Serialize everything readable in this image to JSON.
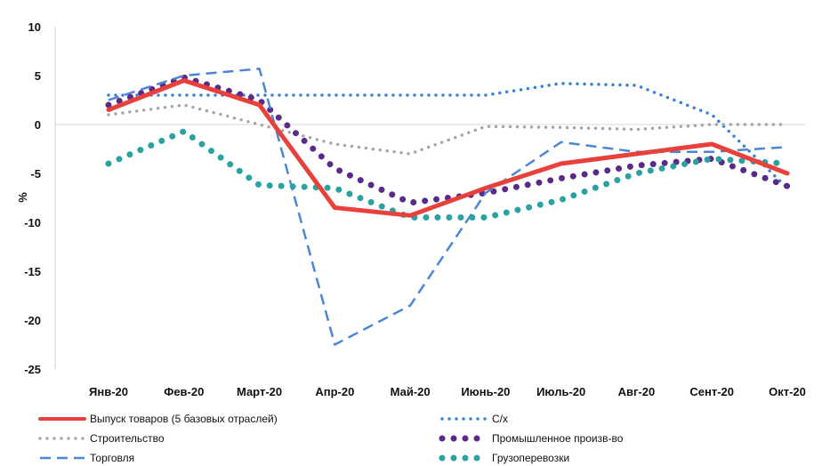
{
  "chart_data": {
    "type": "line",
    "ylabel": "%",
    "ylim": [
      -25,
      10
    ],
    "yticks": [
      10,
      5,
      0,
      -5,
      -10,
      -15,
      -20,
      -25
    ],
    "categories": [
      "Янв-20",
      "Фев-20",
      "Март-20",
      "Апр-20",
      "Май-20",
      "Июнь-20",
      "Июль-20",
      "Авг-20",
      "Сент-20",
      "Окт-20"
    ],
    "legend_position": "bottom",
    "series": [
      {
        "name": "Выпуск товаров (5 базовых отраслей)",
        "style": "solid",
        "color": "#e8413b",
        "values": [
          1.5,
          4.5,
          2.0,
          -8.5,
          -9.3,
          -6.5,
          -4.0,
          -3.0,
          -2.0,
          -5.0
        ]
      },
      {
        "name": "С/х",
        "style": "dotted-small",
        "color": "#3a7fd5",
        "values": [
          3.0,
          3.0,
          3.0,
          3.0,
          3.0,
          3.0,
          4.2,
          4.0,
          1.0,
          -6.5
        ]
      },
      {
        "name": "Строительство",
        "style": "dotted-small",
        "color": "#a6a6a6",
        "values": [
          1.0,
          2.0,
          0.0,
          -2.0,
          -3.0,
          -0.2,
          -0.3,
          -0.5,
          0.0,
          0.0
        ]
      },
      {
        "name": "Промышленное произв-во",
        "style": "dotted-large",
        "color": "#5a2a8a",
        "values": [
          2.0,
          4.8,
          2.5,
          -4.5,
          -8.0,
          -7.0,
          -5.5,
          -4.2,
          -3.5,
          -6.3
        ]
      },
      {
        "name": "Торговля",
        "style": "dashed",
        "color": "#4c86d4",
        "values": [
          2.5,
          5.0,
          5.7,
          -22.5,
          -18.5,
          -7.0,
          -1.8,
          -2.8,
          -2.8,
          -2.3
        ]
      },
      {
        "name": "Грузоперевозки",
        "style": "dotted-large",
        "color": "#2aa3a0",
        "values": [
          -4.0,
          -0.7,
          -6.2,
          -6.5,
          -9.5,
          -9.5,
          -7.7,
          -5.0,
          -3.5,
          -4.0
        ]
      }
    ]
  }
}
